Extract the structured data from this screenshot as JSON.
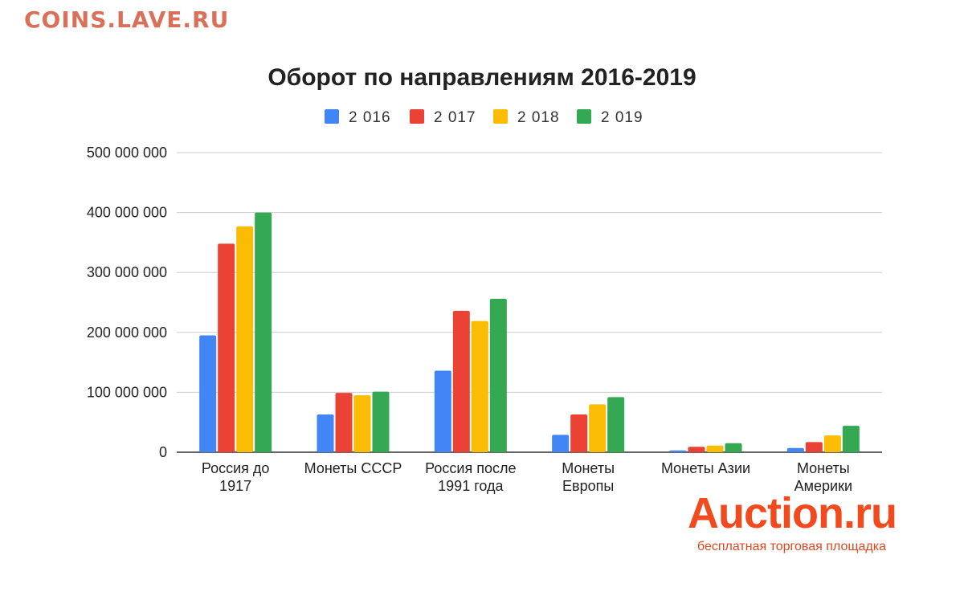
{
  "watermark": "COINS.LAVE.RU",
  "brand": {
    "name": "Auction.ru",
    "tagline": "бесплатная торговая площадка"
  },
  "chart_data": {
    "type": "bar",
    "title": "Оборот по направлениям 2016-2019",
    "categories": [
      [
        "Россия до",
        "1917"
      ],
      [
        "Монеты СССР"
      ],
      [
        "Россия после",
        "1991 года"
      ],
      [
        "Монеты",
        "Европы"
      ],
      [
        "Монеты Азии"
      ],
      [
        "Монеты",
        "Америки"
      ]
    ],
    "series": [
      {
        "name": "2 016",
        "color": "#4285f4",
        "values": [
          195000000,
          63000000,
          136000000,
          29000000,
          3000000,
          7000000
        ]
      },
      {
        "name": "2 017",
        "color": "#ea4335",
        "values": [
          348000000,
          99000000,
          236000000,
          63000000,
          9000000,
          17000000
        ]
      },
      {
        "name": "2 018",
        "color": "#fbbc04",
        "values": [
          377000000,
          95000000,
          219000000,
          80000000,
          11000000,
          28000000
        ]
      },
      {
        "name": "2 019",
        "color": "#34a853",
        "values": [
          400000000,
          101000000,
          256000000,
          92000000,
          15000000,
          44000000
        ]
      }
    ],
    "yticks": [
      "0",
      "100 000 000",
      "200 000 000",
      "300 000 000",
      "400 000 000",
      "500 000 000"
    ],
    "ylim": [
      0,
      500000000
    ],
    "grid": true,
    "legend": "top-center",
    "xlabel": "",
    "ylabel": ""
  }
}
